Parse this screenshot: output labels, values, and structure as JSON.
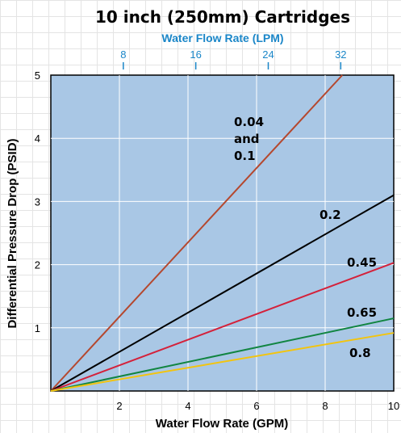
{
  "chart_data": {
    "type": "line",
    "title": "10 inch (250mm) Cartridges",
    "xlabel": "Water Flow Rate (GPM)",
    "ylabel": "Differential Pressure Drop (PSID)",
    "top_axis": {
      "label": "Water Flow Rate (LPM)",
      "ticks": [
        8,
        16,
        24,
        32
      ],
      "tick_labels": [
        "8",
        "16",
        "24",
        "32"
      ]
    },
    "xlim": [
      0,
      10
    ],
    "ylim": [
      0,
      5
    ],
    "x_ticks": [
      2,
      4,
      6,
      8,
      10
    ],
    "x_tick_labels": [
      "2",
      "4",
      "6",
      "8",
      "10"
    ],
    "y_ticks": [
      1,
      2,
      3,
      4,
      5
    ],
    "y_tick_labels": [
      "1",
      "2",
      "3",
      "4",
      "5"
    ],
    "grid": true,
    "legend": "none (series labelled directly on the lines)",
    "series": [
      {
        "name": "0.04 and 0.1",
        "label_lines": [
          "0.04",
          "and",
          "0.1"
        ],
        "x": [
          0,
          8.5
        ],
        "y": [
          0,
          5
        ],
        "color": "#b5482e"
      },
      {
        "name": "0.2",
        "label_lines": [
          "0.2"
        ],
        "x": [
          0,
          10
        ],
        "y": [
          0,
          3.1
        ],
        "color": "#000000"
      },
      {
        "name": "0.45",
        "label_lines": [
          "0.45"
        ],
        "x": [
          0,
          10
        ],
        "y": [
          0,
          2.03
        ],
        "color": "#d4213a"
      },
      {
        "name": "0.65",
        "label_lines": [
          "0.65"
        ],
        "x": [
          0,
          10
        ],
        "y": [
          0,
          1.15
        ],
        "color": "#118541"
      },
      {
        "name": "0.8",
        "label_lines": [
          "0.8"
        ],
        "x": [
          0,
          10
        ],
        "y": [
          0,
          0.92
        ],
        "color": "#f2c40f"
      }
    ],
    "colors": {
      "plot_background": "#a9c7e5",
      "grid": "#ffffff",
      "top_axis": "#1a86c8"
    }
  }
}
